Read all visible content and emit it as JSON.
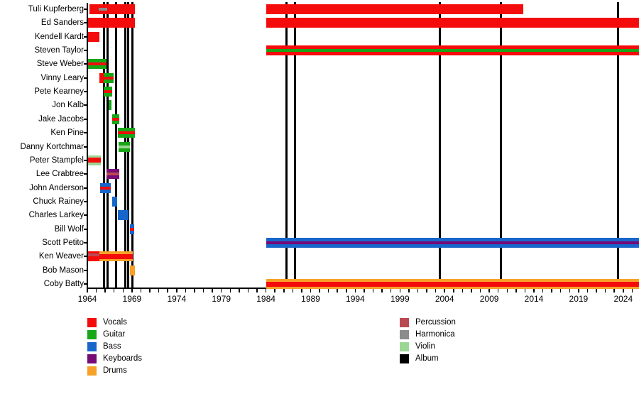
{
  "chart_data": {
    "type": "bar",
    "subtype": "member-timeline-gantt",
    "title": "",
    "x_axis": {
      "min": 1964,
      "max": 2026,
      "tick_every": 1,
      "label_every": 5,
      "tick_labels": [
        1964,
        1969,
        1974,
        1979,
        1984,
        1989,
        1994,
        1999,
        2004,
        2009,
        2014,
        2019,
        2024
      ]
    },
    "colors": {
      "vocals": "#f40b0b",
      "guitar": "#16a616",
      "bass": "#1766cc",
      "keyboards": "#760a76",
      "drums": "#f7a128",
      "percussion": "#b94a52",
      "harmonica": "#8c8c8c",
      "violin": "#9cd695",
      "album": "#000000"
    },
    "legend_columns": [
      [
        {
          "label": "Vocals",
          "color": "vocals"
        },
        {
          "label": "Guitar",
          "color": "guitar"
        },
        {
          "label": "Bass",
          "color": "bass"
        },
        {
          "label": "Keyboards",
          "color": "keyboards"
        },
        {
          "label": "Drums",
          "color": "drums"
        }
      ],
      [
        {
          "label": "Percussion",
          "color": "percussion"
        },
        {
          "label": "Harmonica",
          "color": "harmonica"
        },
        {
          "label": "Violin",
          "color": "violin"
        },
        {
          "label": "Album",
          "color": "album"
        }
      ]
    ],
    "album_lines_years": [
      1965.83,
      1966.23,
      1967.18,
      1968.28,
      1968.58,
      1969.01,
      1986.26,
      1987.29,
      2003.5,
      2010.27,
      2023.38
    ],
    "members": [
      {
        "name": "Tuli Kupferberg",
        "bars": [
          {
            "from": 1964.25,
            "to": 1969.35,
            "base": "vocals",
            "stripes": [
              {
                "color": "harmonica",
                "pos": "center",
                "from": 1965.3,
                "to": 1966.25
              }
            ]
          },
          {
            "from": 1984.0,
            "to": 2012.8,
            "base": "vocals",
            "stripes": []
          }
        ]
      },
      {
        "name": "Ed Sanders",
        "bars": [
          {
            "from": 1964.05,
            "to": 1969.35,
            "base": "vocals",
            "stripes": []
          },
          {
            "from": 1984.0,
            "to": 2026.0,
            "base": "vocals",
            "stripes": []
          }
        ]
      },
      {
        "name": "Kendell Kardt",
        "bars": [
          {
            "from": 1964.05,
            "to": 1965.35,
            "base": "vocals",
            "stripes": []
          }
        ]
      },
      {
        "name": "Steven Taylor",
        "bars": [
          {
            "from": 1984.0,
            "to": 2026.0,
            "base": "vocals",
            "stripes": [
              {
                "color": "guitar",
                "pos": "center"
              }
            ]
          }
        ]
      },
      {
        "name": "Steve Weber",
        "bars": [
          {
            "from": 1964.05,
            "to": 1966.15,
            "base": "guitar",
            "stripes": [
              {
                "color": "vocals",
                "pos": "center"
              }
            ]
          }
        ]
      },
      {
        "name": "Vinny Leary",
        "bars": [
          {
            "from": 1965.35,
            "to": 1965.85,
            "base": "vocals",
            "stripes": []
          },
          {
            "from": 1965.85,
            "to": 1966.95,
            "base": "guitar",
            "stripes": [
              {
                "color": "vocals",
                "pos": "center"
              }
            ]
          }
        ]
      },
      {
        "name": "Pete Kearney",
        "bars": [
          {
            "from": 1965.85,
            "to": 1966.8,
            "base": "guitar",
            "stripes": [
              {
                "color": "vocals",
                "pos": "center"
              }
            ]
          }
        ]
      },
      {
        "name": "Jon Kalb",
        "bars": [
          {
            "from": 1966.4,
            "to": 1966.7,
            "base": "guitar",
            "stripes": []
          }
        ]
      },
      {
        "name": "Jake Jacobs",
        "bars": [
          {
            "from": 1966.8,
            "to": 1967.6,
            "base": "guitar",
            "stripes": [
              {
                "color": "vocals",
                "pos": "center"
              }
            ]
          }
        ]
      },
      {
        "name": "Ken Pine",
        "bars": [
          {
            "from": 1967.4,
            "to": 1969.35,
            "base": "guitar",
            "stripes": [
              {
                "color": "vocals",
                "pos": "center"
              }
            ]
          }
        ]
      },
      {
        "name": "Danny Kortchmar",
        "bars": [
          {
            "from": 1967.5,
            "to": 1968.8,
            "base": "guitar",
            "stripes": [
              {
                "color": "violin",
                "pos": "center"
              }
            ]
          }
        ]
      },
      {
        "name": "Peter Stampfel",
        "bars": [
          {
            "from": 1964.05,
            "to": 1965.5,
            "base": "vocals",
            "stripes": [
              {
                "color": "violin",
                "pos": "top"
              },
              {
                "color": "violin",
                "pos": "bottom"
              }
            ]
          }
        ]
      },
      {
        "name": "Lee Crabtree",
        "bars": [
          {
            "from": 1966.15,
            "to": 1967.6,
            "base": "keyboards",
            "stripes": [
              {
                "color": "percussion",
                "pos": "center"
              }
            ]
          }
        ]
      },
      {
        "name": "John Anderson",
        "bars": [
          {
            "from": 1965.45,
            "to": 1966.6,
            "base": "bass",
            "stripes": [
              {
                "color": "vocals",
                "pos": "center"
              }
            ]
          }
        ]
      },
      {
        "name": "Chuck Rainey",
        "bars": [
          {
            "from": 1966.8,
            "to": 1967.35,
            "base": "bass",
            "stripes": []
          }
        ]
      },
      {
        "name": "Charles Larkey",
        "bars": [
          {
            "from": 1967.4,
            "to": 1968.6,
            "base": "bass",
            "stripes": []
          }
        ]
      },
      {
        "name": "Bill Wolf",
        "bars": [
          {
            "from": 1968.8,
            "to": 1969.25,
            "base": "bass",
            "stripes": [
              {
                "color": "vocals",
                "pos": "center"
              }
            ]
          }
        ]
      },
      {
        "name": "Scott Petito",
        "bars": [
          {
            "from": 1984.0,
            "to": 2026.0,
            "base": "bass",
            "stripes": [
              {
                "color": "keyboards",
                "pos": "center"
              }
            ]
          }
        ]
      },
      {
        "name": "Ken Weaver",
        "bars": [
          {
            "from": 1964.05,
            "to": 1969.1,
            "base": "vocals",
            "stripes": [
              {
                "color": "percussion",
                "pos": "upper",
                "from": 1964.05,
                "to": 1965.35
              },
              {
                "color": "drums",
                "pos": "top",
                "from": 1965.35,
                "to": 1969.1
              },
              {
                "color": "drums",
                "pos": "bottom",
                "from": 1965.35,
                "to": 1969.1
              }
            ]
          }
        ]
      },
      {
        "name": "Bob Mason",
        "bars": [
          {
            "from": 1968.8,
            "to": 1969.35,
            "base": "drums",
            "stripes": []
          }
        ]
      },
      {
        "name": "Coby Batty",
        "bars": [
          {
            "from": 1984.0,
            "to": 2026.0,
            "base": "vocals",
            "stripes": [
              {
                "color": "drums",
                "pos": "top"
              },
              {
                "color": "drums",
                "pos": "bottom"
              }
            ]
          }
        ]
      }
    ]
  }
}
